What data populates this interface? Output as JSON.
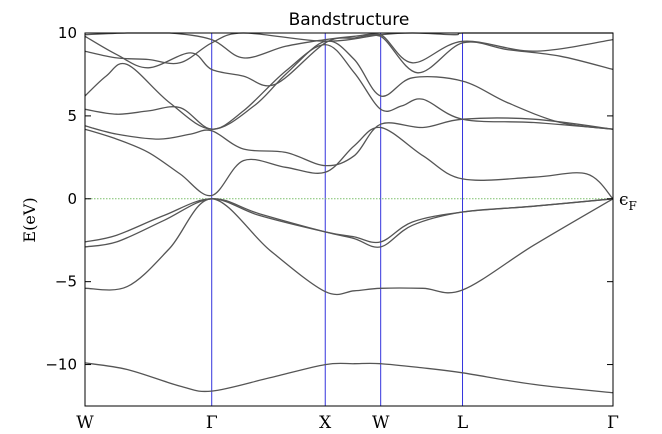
{
  "chart_data": {
    "type": "line",
    "title": "Bandstructure",
    "ylabel": "E(eV)",
    "ylim": [
      -12.5,
      10
    ],
    "yticks": [
      10,
      5,
      0,
      -5,
      -10
    ],
    "ytick_labels": [
      "10",
      "5",
      "0",
      "−5",
      "−10"
    ],
    "xtick_labels": [
      "W",
      "Γ",
      "X",
      "W",
      "L",
      "Γ"
    ],
    "kpoints": [
      0,
      0.24,
      0.455,
      0.56,
      0.715,
      1.0
    ],
    "fermi_level": 0,
    "fermi_label": "ϵF",
    "band_color": "#555555",
    "kline_color": "#3333dd",
    "fermi_color": "#7bbf6a",
    "series": [
      {
        "x": [
          0,
          0.08,
          0.18,
          0.24,
          0.35,
          0.455,
          0.51,
          0.56,
          0.64,
          0.715,
          0.85,
          1.0
        ],
        "values": [
          -9.9,
          -10.3,
          -11.3,
          -11.6,
          -10.8,
          -10.0,
          -9.95,
          -9.95,
          -10.2,
          -10.5,
          -11.2,
          -11.7
        ]
      },
      {
        "x": [
          0,
          0.08,
          0.16,
          0.24,
          0.35,
          0.455,
          0.51,
          0.56,
          0.64,
          0.715,
          0.85,
          1.0
        ],
        "values": [
          -5.4,
          -5.3,
          -3.0,
          0.0,
          -3.1,
          -5.6,
          -5.55,
          -5.4,
          -5.4,
          -5.5,
          -2.8,
          0.0
        ]
      },
      {
        "x": [
          0,
          0.06,
          0.15,
          0.24,
          0.33,
          0.455,
          0.51,
          0.56,
          0.62,
          0.715,
          0.85,
          1.0
        ],
        "values": [
          -2.9,
          -2.6,
          -1.3,
          0.0,
          -0.9,
          -2.0,
          -2.4,
          -2.9,
          -1.6,
          -0.8,
          -0.45,
          0.0
        ]
      },
      {
        "x": [
          0,
          0.06,
          0.15,
          0.24,
          0.33,
          0.455,
          0.51,
          0.56,
          0.62,
          0.715,
          0.85,
          1.0
        ],
        "values": [
          -2.6,
          -2.2,
          -1.0,
          0.0,
          -1.0,
          -2.0,
          -2.3,
          -2.6,
          -1.4,
          -0.8,
          -0.45,
          0.0
        ]
      },
      {
        "x": [
          0,
          0.06,
          0.12,
          0.18,
          0.24,
          0.3,
          0.38,
          0.455,
          0.51,
          0.56,
          0.64,
          0.715,
          0.85,
          0.95,
          1.0
        ],
        "values": [
          4.2,
          3.6,
          2.8,
          1.5,
          0.2,
          2.3,
          1.9,
          1.6,
          3.2,
          4.3,
          2.6,
          1.2,
          1.3,
          1.5,
          0.0
        ]
      },
      {
        "x": [
          0,
          0.06,
          0.14,
          0.2,
          0.24,
          0.3,
          0.38,
          0.455,
          0.51,
          0.56,
          0.64,
          0.715,
          0.85,
          1.0
        ],
        "values": [
          4.4,
          3.9,
          3.6,
          3.9,
          4.1,
          3.0,
          2.8,
          2.0,
          2.6,
          4.5,
          4.3,
          4.8,
          4.8,
          4.2
        ]
      },
      {
        "x": [
          0,
          0.06,
          0.12,
          0.18,
          0.24,
          0.3,
          0.38,
          0.455,
          0.51,
          0.56,
          0.6,
          0.64,
          0.715,
          0.85,
          1.0
        ],
        "values": [
          5.4,
          5.1,
          5.3,
          5.5,
          4.2,
          5.3,
          7.7,
          9.3,
          7.6,
          5.4,
          5.6,
          6.0,
          4.8,
          4.6,
          4.2
        ]
      },
      {
        "x": [
          0,
          0.04,
          0.08,
          0.16,
          0.24,
          0.32,
          0.38,
          0.455,
          0.51,
          0.56,
          0.62,
          0.715,
          0.8,
          0.9,
          1.0
        ],
        "values": [
          6.2,
          7.4,
          8.1,
          5.8,
          4.2,
          5.6,
          7.5,
          9.5,
          8.4,
          6.2,
          7.3,
          7.1,
          5.8,
          4.6,
          4.2
        ]
      },
      {
        "x": [
          0,
          0.06,
          0.12,
          0.2,
          0.24,
          0.3,
          0.36,
          0.455,
          0.51,
          0.56,
          0.63,
          0.715,
          0.8,
          0.9,
          1.0
        ],
        "values": [
          9.8,
          8.7,
          7.9,
          8.8,
          7.8,
          7.4,
          6.9,
          9.4,
          9.7,
          9.8,
          7.6,
          9.4,
          9.0,
          8.6,
          7.8
        ]
      },
      {
        "x": [
          0,
          0.08,
          0.16,
          0.24,
          0.3,
          0.38,
          0.455,
          0.51,
          0.56,
          0.62,
          0.715,
          0.85,
          1.0
        ],
        "values": [
          9.9,
          10.2,
          10.1,
          9.6,
          8.5,
          9.2,
          9.6,
          9.8,
          9.9,
          8.2,
          9.5,
          8.9,
          9.6
        ]
      },
      {
        "x": [
          0,
          0.06,
          0.12,
          0.18,
          0.24,
          0.3,
          0.455,
          0.56,
          0.62,
          0.7,
          0.715,
          0.8,
          0.9,
          1.0
        ],
        "values": [
          8.9,
          8.5,
          8.4,
          8.2,
          9.4,
          10.0,
          9.5,
          9.9,
          10.0,
          9.9,
          10.0,
          10.2,
          10.2,
          10.1
        ]
      }
    ]
  }
}
